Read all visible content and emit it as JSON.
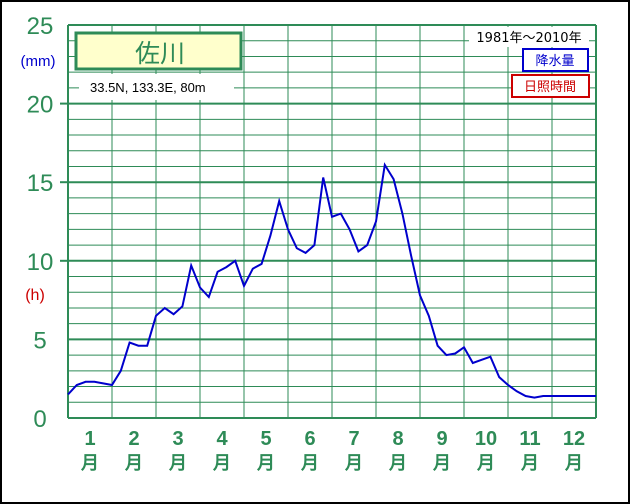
{
  "chart_data": {
    "type": "line",
    "station": "佐川",
    "location": "33.5N,  133.3E,  80m",
    "period": "1981年～2010年",
    "legend": [
      {
        "label": "降水量",
        "color": "#0000cc"
      },
      {
        "label": "日照時間",
        "color": "#cc0000"
      }
    ],
    "y_unit_top": "(mm)",
    "y_unit_mid": "(h)",
    "ylim": [
      0,
      25
    ],
    "yticks": [
      "0",
      "5",
      "10",
      "15",
      "20",
      "25"
    ],
    "months": [
      {
        "num": "1",
        "unit": "月"
      },
      {
        "num": "2",
        "unit": "月"
      },
      {
        "num": "3",
        "unit": "月"
      },
      {
        "num": "4",
        "unit": "月"
      },
      {
        "num": "5",
        "unit": "月"
      },
      {
        "num": "6",
        "unit": "月"
      },
      {
        "num": "7",
        "unit": "月"
      },
      {
        "num": "8",
        "unit": "月"
      },
      {
        "num": "9",
        "unit": "月"
      },
      {
        "num": "10",
        "unit": "月"
      },
      {
        "num": "11",
        "unit": "月"
      },
      {
        "num": "12",
        "unit": "月"
      }
    ],
    "series": [
      {
        "name": "降水量",
        "color": "#0000cc",
        "x": [
          0.0,
          0.2,
          0.4,
          0.6,
          0.8,
          1.0,
          1.2,
          1.4,
          1.6,
          1.8,
          2.0,
          2.2,
          2.4,
          2.6,
          2.8,
          3.0,
          3.2,
          3.4,
          3.6,
          3.8,
          4.0,
          4.2,
          4.4,
          4.6,
          4.8,
          5.0,
          5.2,
          5.4,
          5.6,
          5.8,
          6.0,
          6.2,
          6.4,
          6.6,
          6.8,
          7.0,
          7.2,
          7.4,
          7.6,
          7.8,
          8.0,
          8.2,
          8.4,
          8.6,
          8.8,
          9.0,
          9.2,
          9.4,
          9.6,
          9.8,
          10.0,
          10.2,
          10.4,
          10.6,
          10.8,
          11.0,
          11.2,
          11.4,
          11.6,
          11.8,
          12.0
        ],
        "values": [
          1.5,
          2.1,
          2.3,
          2.3,
          2.2,
          2.1,
          3.0,
          4.8,
          4.6,
          4.6,
          6.5,
          7.0,
          6.6,
          7.1,
          9.7,
          8.3,
          7.7,
          9.3,
          9.6,
          10.0,
          8.4,
          9.5,
          9.8,
          11.6,
          13.8,
          12.0,
          10.8,
          10.5,
          11.0,
          15.3,
          12.8,
          13.0,
          12.0,
          10.6,
          11.0,
          12.5,
          16.1,
          15.2,
          13.0,
          10.3,
          7.8,
          6.5,
          4.6,
          4.0,
          4.1,
          4.5,
          3.5,
          3.7,
          3.9,
          2.6,
          2.1,
          1.7,
          1.4,
          1.3,
          1.4,
          1.4,
          1.4,
          1.4,
          1.4,
          1.4,
          1.4
        ]
      }
    ],
    "grid": true
  }
}
